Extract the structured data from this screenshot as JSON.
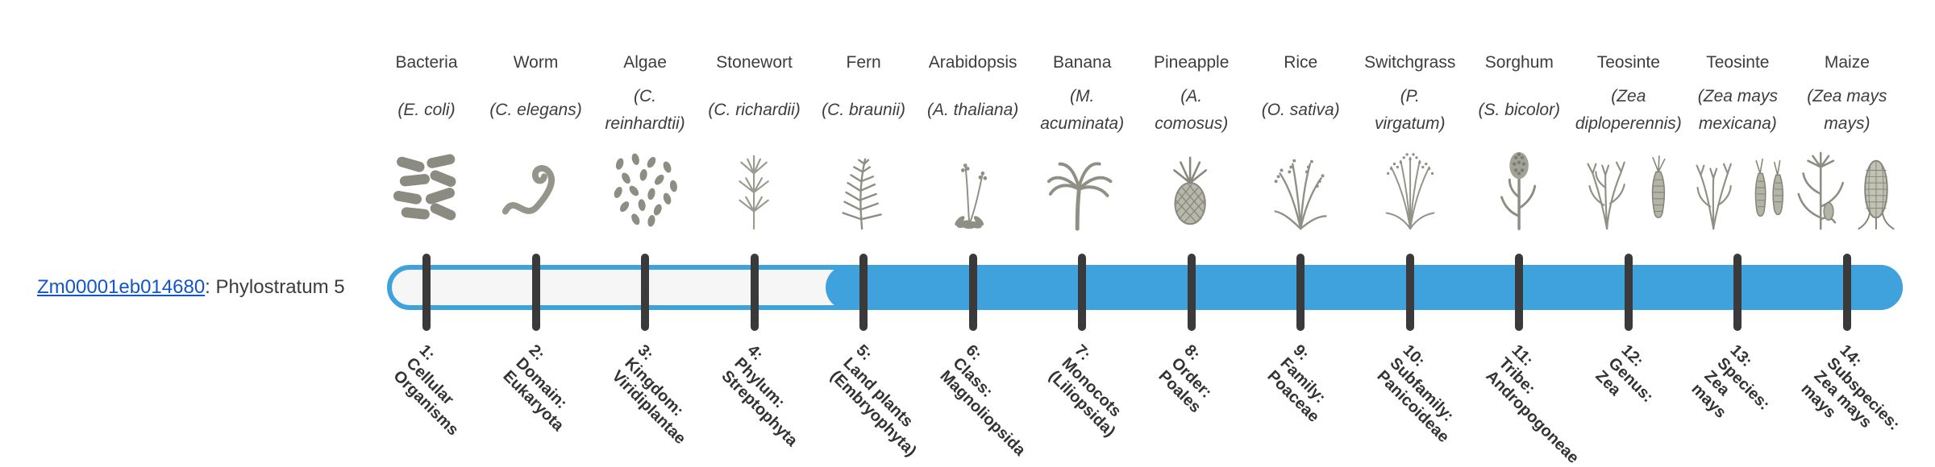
{
  "gene": {
    "id": "Zm00001eb014680",
    "suffix": ": Phylostratum 5",
    "phylostratum": 5
  },
  "colors": {
    "bar_fill": "#3fa2dc",
    "bar_outline": "#3fa2dc",
    "bar_track": "#f6f6f6",
    "tick": "#3a3a3a",
    "link": "#1155cc",
    "text": "#3d3d3d"
  },
  "bar": {
    "total_strata": 14,
    "filled_from_stratum": 5,
    "filled_to_stratum": 14
  },
  "organisms": [
    {
      "common": "Bacteria",
      "sci_lines": [
        "(E. coli)"
      ],
      "icon": "bacteria",
      "stratum_lines": [
        "1:",
        "Cellular",
        "Organisms"
      ]
    },
    {
      "common": "Worm",
      "sci_lines": [
        "(C. elegans)"
      ],
      "icon": "worm",
      "stratum_lines": [
        "2:",
        "Domain:",
        "Eukaryota"
      ]
    },
    {
      "common": "Algae",
      "sci_lines": [
        "(C.",
        "reinhardtii)"
      ],
      "icon": "algae",
      "stratum_lines": [
        "3:",
        "Kingdom:",
        "Viridiplantae"
      ]
    },
    {
      "common": "Stonewort",
      "sci_lines": [
        "(C. richardii)"
      ],
      "icon": "stonewort",
      "stratum_lines": [
        "4:",
        "Phylum:",
        "Streptophyta"
      ]
    },
    {
      "common": "Fern",
      "sci_lines": [
        "(C. braunii)"
      ],
      "icon": "fern",
      "stratum_lines": [
        "5:",
        "Land plants",
        "(Embryophyta)"
      ]
    },
    {
      "common": "Arabidopsis",
      "sci_lines": [
        "(A. thaliana)"
      ],
      "icon": "arabidopsis",
      "stratum_lines": [
        "6:",
        "Class:",
        "Magnoliopsida"
      ]
    },
    {
      "common": "Banana",
      "sci_lines": [
        "(M.",
        "acuminata)"
      ],
      "icon": "banana",
      "stratum_lines": [
        "7:",
        "Monocots",
        "(Liliopsida)"
      ]
    },
    {
      "common": "Pineapple",
      "sci_lines": [
        "(A.",
        "comosus)"
      ],
      "icon": "pineapple",
      "stratum_lines": [
        "8:",
        "Order:",
        "Poales"
      ]
    },
    {
      "common": "Rice",
      "sci_lines": [
        "(O. sativa)"
      ],
      "icon": "rice",
      "stratum_lines": [
        "9:",
        "Family:",
        "Poaceae"
      ]
    },
    {
      "common": "Switchgrass",
      "sci_lines": [
        "(P.",
        "virgatum)"
      ],
      "icon": "switchgrass",
      "stratum_lines": [
        "10:",
        "Subfamily:",
        "Panicoideae"
      ]
    },
    {
      "common": "Sorghum",
      "sci_lines": [
        "(S. bicolor)"
      ],
      "icon": "sorghum",
      "stratum_lines": [
        "11:",
        "Tribe:",
        "Andropogoneae"
      ]
    },
    {
      "common": "Teosinte",
      "sci_lines": [
        "(Zea",
        "diploperennis)"
      ],
      "icon": "teosinte",
      "stratum_lines": [
        "12:",
        "Genus:",
        "Zea"
      ]
    },
    {
      "common": "Teosinte",
      "sci_lines": [
        "(Zea mays",
        "mexicana)"
      ],
      "icon": "teosinte-ear",
      "stratum_lines": [
        "13:",
        "Species:",
        "Zea",
        "mays"
      ]
    },
    {
      "common": "Maize",
      "sci_lines": [
        "(Zea mays",
        "mays)"
      ],
      "icon": "maize",
      "stratum_lines": [
        "14:",
        "Subspecies:",
        "Zea mays",
        "mays"
      ]
    }
  ],
  "chart_data": {
    "type": "bar",
    "orientation": "horizontal",
    "title": "Zm00001eb014680: Phylostratum 5",
    "gene": "Zm00001eb014680",
    "phylostratum": 5,
    "bar_track_span": [
      1,
      14
    ],
    "bar_filled_span": [
      5,
      14
    ],
    "categories": [
      "1: Cellular Organisms",
      "2: Domain: Eukaryota",
      "3: Kingdom: Viridiplantae",
      "4: Phylum: Streptophyta",
      "5: Land plants (Embryophyta)",
      "6: Class: Magnoliopsida",
      "7: Monocots (Liliopsida)",
      "8: Order: Poales",
      "9: Family: Poaceae",
      "10: Subfamily: Panicoideae",
      "11: Tribe: Andropogoneae",
      "12: Genus: Zea",
      "13: Species: Zea mays",
      "14: Subspecies: Zea mays mays"
    ],
    "organisms": [
      "Bacteria (E. coli)",
      "Worm (C. elegans)",
      "Algae (C. reinhardtii)",
      "Stonewort (C. richardii)",
      "Fern (C. braunii)",
      "Arabidopsis (A. thaliana)",
      "Banana (M. acuminata)",
      "Pineapple (A. comosus)",
      "Rice (O. sativa)",
      "Switchgrass (P. virgatum)",
      "Sorghum (S. bicolor)",
      "Teosinte (Zea diploperennis)",
      "Teosinte (Zea mays mexicana)",
      "Maize (Zea mays mays)"
    ],
    "grid": "off",
    "legend": "off"
  }
}
